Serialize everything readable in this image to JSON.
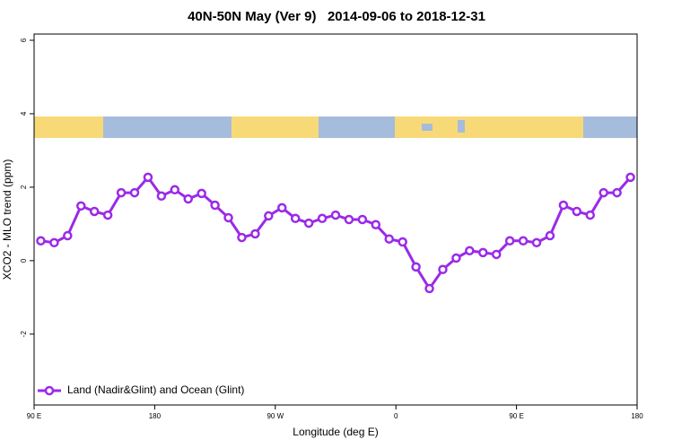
{
  "chart_data": {
    "type": "line",
    "title": "40N-50N May (Ver 9)   2014-09-06 to 2018-12-31",
    "x_label": "Longitude (deg E)",
    "y_label": "XCO2 - MLO trend (ppm)",
    "x": [
      95,
      105,
      115,
      125,
      135,
      145,
      155,
      165,
      175,
      185,
      195,
      205,
      215,
      225,
      235,
      245,
      255,
      265,
      275,
      285,
      295,
      305,
      315,
      325,
      335,
      345,
      355,
      365,
      375,
      385,
      395,
      405,
      415,
      425,
      435,
      445,
      455,
      465,
      475,
      485,
      495,
      505,
      515,
      525,
      535
    ],
    "series": [
      {
        "name": "Land (Nadir&Glint) and Ocean (Glint)",
        "color": "#9a2ae8",
        "values": [
          0.54,
          0.49,
          0.68,
          1.49,
          1.34,
          1.24,
          1.85,
          1.85,
          2.27,
          1.76,
          1.93,
          1.68,
          1.83,
          1.51,
          1.17,
          0.63,
          0.73,
          1.22,
          1.44,
          1.15,
          1.02,
          1.15,
          1.24,
          1.12,
          1.12,
          0.98,
          0.59,
          0.51,
          -0.17,
          -0.76,
          -0.24,
          0.07,
          0.27,
          0.22,
          0.17,
          0.54,
          0.54,
          0.49,
          0.68,
          1.51,
          1.34,
          1.24,
          1.85,
          1.85,
          2.27
        ]
      }
    ],
    "xlim": [
      90,
      540
    ],
    "xticks": [
      {
        "value": 90,
        "label": "90 E"
      },
      {
        "value": 180,
        "label": "180"
      },
      {
        "value": 270,
        "label": "90 W"
      },
      {
        "value": 360,
        "label": "0"
      },
      {
        "value": 450,
        "label": "90 E"
      },
      {
        "value": 540,
        "label": "180"
      }
    ],
    "ylim": [
      -3.93,
      6.17
    ],
    "yticks": [
      -2,
      0,
      2,
      4,
      6
    ],
    "legend": "bottomleft"
  }
}
